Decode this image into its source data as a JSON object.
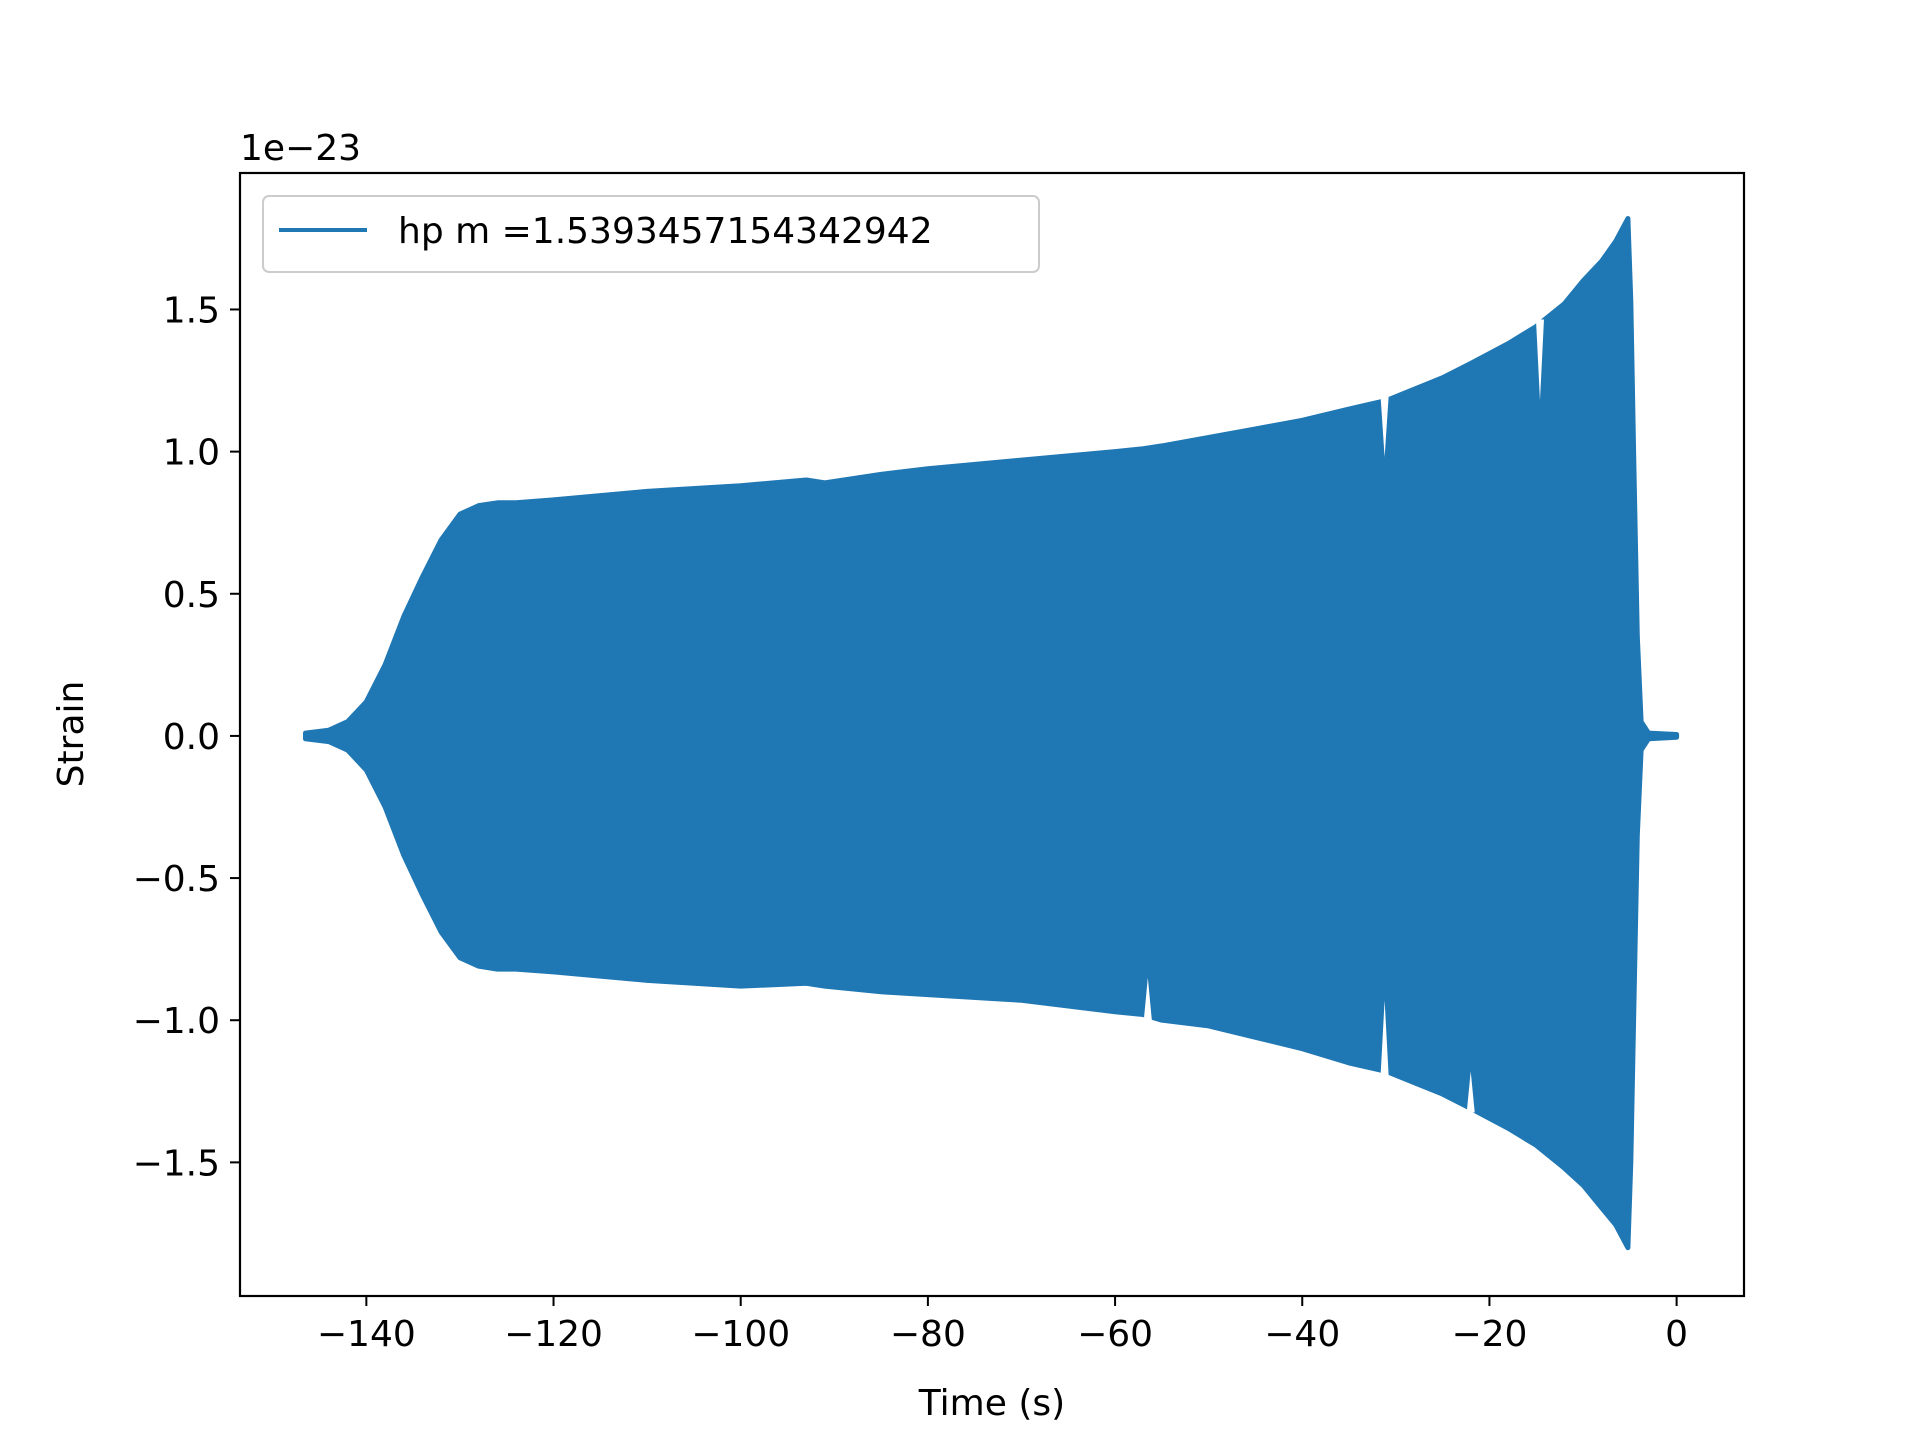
{
  "chart_data": {
    "type": "area",
    "title": "",
    "xlabel": "Time (s)",
    "ylabel": "Strain",
    "y_offset_label": "1e−23",
    "xlim": [
      -153.5,
      7.2
    ],
    "ylim": [
      -1.97,
      1.98
    ],
    "x_ticks": [
      -140,
      -120,
      -100,
      -80,
      -60,
      -40,
      -20,
      0
    ],
    "x_tick_labels": [
      "−140",
      "−120",
      "−100",
      "−80",
      "−60",
      "−40",
      "−20",
      "0"
    ],
    "y_ticks": [
      -1.5,
      -1.0,
      -0.5,
      0.0,
      0.5,
      1.0,
      1.5
    ],
    "y_tick_labels": [
      "−1.5",
      "−1.0",
      "−0.5",
      "0.0",
      "0.5",
      "1.0",
      "1.5"
    ],
    "grid": false,
    "legend_position": "upper-left",
    "series": [
      {
        "name": "hp m =1.5393457154342942",
        "color": "#1f77b4",
        "envelope_upper": [
          [
            -146.5,
            0.01
          ],
          [
            -144,
            0.02
          ],
          [
            -142,
            0.05
          ],
          [
            -140,
            0.12
          ],
          [
            -138,
            0.25
          ],
          [
            -136,
            0.42
          ],
          [
            -134,
            0.56
          ],
          [
            -132,
            0.69
          ],
          [
            -130,
            0.78
          ],
          [
            -128,
            0.81
          ],
          [
            -126,
            0.82
          ],
          [
            -124,
            0.82
          ],
          [
            -120,
            0.83
          ],
          [
            -110,
            0.86
          ],
          [
            -100,
            0.88
          ],
          [
            -93,
            0.9
          ],
          [
            -91,
            0.89
          ],
          [
            -85,
            0.92
          ],
          [
            -80,
            0.94
          ],
          [
            -70,
            0.97
          ],
          [
            -60,
            1.0
          ],
          [
            -57,
            1.01
          ],
          [
            -55,
            1.02
          ],
          [
            -50,
            1.05
          ],
          [
            -45,
            1.08
          ],
          [
            -40,
            1.11
          ],
          [
            -35,
            1.15
          ],
          [
            -31,
            1.18
          ],
          [
            -28,
            1.22
          ],
          [
            -25,
            1.26
          ],
          [
            -22,
            1.31
          ],
          [
            -18,
            1.38
          ],
          [
            -15,
            1.44
          ],
          [
            -12,
            1.52
          ],
          [
            -10,
            1.6
          ],
          [
            -8,
            1.67
          ],
          [
            -6.5,
            1.74
          ],
          [
            -5.2,
            1.82
          ],
          [
            -4.9,
            1.53
          ],
          [
            -4.6,
            1.0
          ],
          [
            -4.2,
            0.35
          ],
          [
            -3.8,
            0.05
          ],
          [
            -3.0,
            0.01
          ],
          [
            0,
            0.005
          ]
        ],
        "envelope_lower": [
          [
            -146.5,
            -0.01
          ],
          [
            -144,
            -0.02
          ],
          [
            -142,
            -0.05
          ],
          [
            -140,
            -0.12
          ],
          [
            -138,
            -0.25
          ],
          [
            -136,
            -0.42
          ],
          [
            -134,
            -0.56
          ],
          [
            -132,
            -0.69
          ],
          [
            -130,
            -0.78
          ],
          [
            -128,
            -0.81
          ],
          [
            -126,
            -0.82
          ],
          [
            -124,
            -0.82
          ],
          [
            -120,
            -0.83
          ],
          [
            -110,
            -0.86
          ],
          [
            -100,
            -0.88
          ],
          [
            -93,
            -0.87
          ],
          [
            -91,
            -0.88
          ],
          [
            -85,
            -0.9
          ],
          [
            -80,
            -0.91
          ],
          [
            -70,
            -0.93
          ],
          [
            -60,
            -0.97
          ],
          [
            -57,
            -0.98
          ],
          [
            -55,
            -1.0
          ],
          [
            -50,
            -1.02
          ],
          [
            -45,
            -1.06
          ],
          [
            -40,
            -1.1
          ],
          [
            -35,
            -1.15
          ],
          [
            -31,
            -1.18
          ],
          [
            -28,
            -1.22
          ],
          [
            -25,
            -1.26
          ],
          [
            -22,
            -1.31
          ],
          [
            -18,
            -1.38
          ],
          [
            -15,
            -1.44
          ],
          [
            -12,
            -1.52
          ],
          [
            -10,
            -1.58
          ],
          [
            -8,
            -1.66
          ],
          [
            -6.5,
            -1.72
          ],
          [
            -5.2,
            -1.8
          ],
          [
            -4.9,
            -1.5
          ],
          [
            -4.6,
            -1.0
          ],
          [
            -4.2,
            -0.35
          ],
          [
            -3.8,
            -0.05
          ],
          [
            -3.0,
            -0.01
          ],
          [
            0,
            -0.005
          ]
        ],
        "notches": [
          {
            "x": -56.5,
            "side": "lower",
            "to": -0.85
          },
          {
            "x": -31.2,
            "side": "upper",
            "to": 0.98
          },
          {
            "x": -31.2,
            "side": "lower",
            "to": -0.93
          },
          {
            "x": -14.6,
            "side": "upper",
            "to": 1.18
          },
          {
            "x": -22.0,
            "side": "lower",
            "to": -1.18
          }
        ]
      }
    ]
  }
}
